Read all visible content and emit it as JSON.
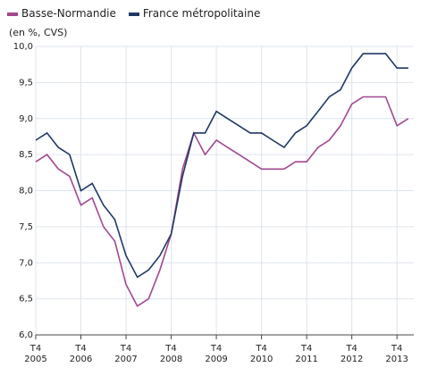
{
  "chart_data": {
    "type": "line",
    "subtitle": "(en %, CVS)",
    "categories": [
      "T4\n2005",
      null,
      null,
      null,
      "T4\n2006",
      null,
      null,
      null,
      "T4\n2007",
      null,
      null,
      null,
      "T4\n2008",
      null,
      null,
      null,
      "T4\n2009",
      null,
      null,
      null,
      "T4\n2010",
      null,
      null,
      null,
      "T4\n2011",
      null,
      null,
      null,
      "T4\n2012",
      null,
      null,
      null,
      "T4\n2013",
      null
    ],
    "series": [
      {
        "name": "Basse-Normandie",
        "color": "#a2488f",
        "values": [
          8.4,
          8.5,
          8.3,
          8.2,
          7.8,
          7.9,
          7.5,
          7.3,
          6.7,
          6.4,
          6.5,
          6.9,
          7.4,
          8.3,
          8.8,
          8.5,
          8.7,
          8.6,
          8.5,
          8.4,
          8.3,
          8.3,
          8.3,
          8.4,
          8.4,
          8.6,
          8.7,
          8.9,
          9.2,
          9.3,
          9.3,
          9.3,
          8.9,
          9.0
        ]
      },
      {
        "name": "France métropolitaine",
        "color": "#1f3864",
        "values": [
          8.7,
          8.8,
          8.6,
          8.5,
          8.0,
          8.1,
          7.8,
          7.6,
          7.1,
          6.8,
          6.9,
          7.1,
          7.4,
          8.2,
          8.8,
          8.8,
          9.1,
          9.0,
          8.9,
          8.8,
          8.8,
          8.7,
          8.6,
          8.8,
          8.9,
          9.1,
          9.3,
          9.4,
          9.7,
          9.9,
          9.9,
          9.9,
          9.7,
          9.7
        ]
      }
    ],
    "ylim": [
      6.0,
      10.0
    ],
    "yticks": [
      {
        "value": 6.0,
        "label": "6,0"
      },
      {
        "value": 6.5,
        "label": "6,5"
      },
      {
        "value": 7.0,
        "label": "7,0"
      },
      {
        "value": 7.5,
        "label": "7,5"
      },
      {
        "value": 8.0,
        "label": "8,0"
      },
      {
        "value": 8.5,
        "label": "8,5"
      },
      {
        "value": 9.0,
        "label": "9,0"
      },
      {
        "value": 9.5,
        "label": "9,5"
      },
      {
        "value": 10.0,
        "label": "10,0"
      }
    ],
    "grid": true
  }
}
